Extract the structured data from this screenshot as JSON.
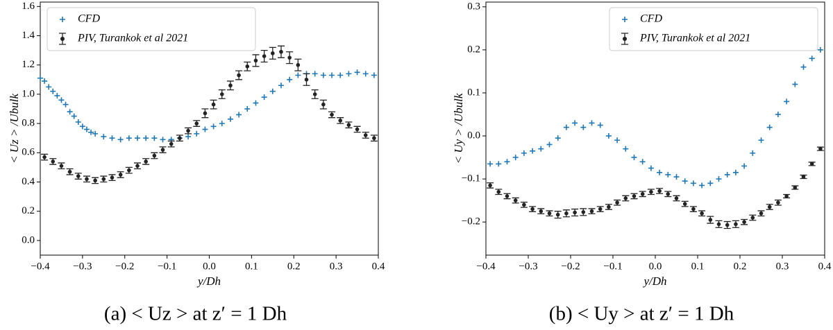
{
  "chart_data": [
    {
      "type": "scatter",
      "caption": "(a) < Uz > at z′ = 1 Dh",
      "xlabel": "y/Dh",
      "ylabel": "< Uz > /Ubulk",
      "xlim": [
        -0.4,
        0.4
      ],
      "ylim": [
        -0.1,
        1.63
      ],
      "xticks": [
        {
          "value": -0.4,
          "label": "−0.4"
        },
        {
          "value": -0.3,
          "label": "−0.3"
        },
        {
          "value": -0.2,
          "label": "−0.2"
        },
        {
          "value": -0.1,
          "label": "−0.1"
        },
        {
          "value": 0,
          "label": "0.0"
        },
        0.1,
        0.2,
        0.3,
        0.4
      ],
      "yticks": [
        {
          "value": 0,
          "label": "0.0"
        },
        0.2,
        0.4,
        0.6,
        0.8,
        {
          "value": 1,
          "label": "1.0"
        },
        1.2,
        1.4,
        1.6
      ],
      "legend": "upper left",
      "series": [
        {
          "name": "CFD",
          "color": "#1f77b4",
          "x": [
            -0.4,
            -0.39,
            -0.38,
            -0.37,
            -0.36,
            -0.35,
            -0.34,
            -0.33,
            -0.32,
            -0.31,
            -0.3,
            -0.29,
            -0.28,
            -0.27,
            -0.25,
            -0.23,
            -0.21,
            -0.19,
            -0.17,
            -0.15,
            -0.13,
            -0.11,
            -0.09,
            -0.07,
            -0.05,
            -0.03,
            -0.01,
            0.01,
            0.03,
            0.05,
            0.07,
            0.09,
            0.11,
            0.13,
            0.15,
            0.17,
            0.19,
            0.21,
            0.23,
            0.25,
            0.27,
            0.29,
            0.31,
            0.33,
            0.35,
            0.37,
            0.39
          ],
          "values": [
            1.11,
            1.09,
            1.05,
            1.02,
            0.99,
            0.96,
            0.93,
            0.88,
            0.85,
            0.81,
            0.78,
            0.76,
            0.74,
            0.73,
            0.71,
            0.7,
            0.69,
            0.7,
            0.7,
            0.7,
            0.7,
            0.69,
            0.69,
            0.7,
            0.71,
            0.73,
            0.76,
            0.78,
            0.8,
            0.83,
            0.86,
            0.9,
            0.94,
            0.98,
            1.02,
            1.06,
            1.1,
            1.13,
            1.14,
            1.14,
            1.13,
            1.13,
            1.13,
            1.14,
            1.15,
            1.14,
            1.13
          ]
        },
        {
          "name": "PIV, Turankok et al 2021",
          "color": "#222222",
          "x": [
            -0.39,
            -0.37,
            -0.35,
            -0.33,
            -0.31,
            -0.29,
            -0.27,
            -0.25,
            -0.23,
            -0.21,
            -0.19,
            -0.17,
            -0.15,
            -0.13,
            -0.11,
            -0.09,
            -0.07,
            -0.05,
            -0.03,
            -0.01,
            0.01,
            0.03,
            0.05,
            0.07,
            0.09,
            0.11,
            0.13,
            0.15,
            0.17,
            0.19,
            0.21,
            0.23,
            0.25,
            0.27,
            0.29,
            0.31,
            0.33,
            0.35,
            0.37,
            0.39
          ],
          "values": [
            0.57,
            0.54,
            0.51,
            0.47,
            0.44,
            0.42,
            0.41,
            0.42,
            0.43,
            0.45,
            0.48,
            0.51,
            0.54,
            0.58,
            0.62,
            0.66,
            0.7,
            0.75,
            0.8,
            0.87,
            0.93,
            1.0,
            1.06,
            1.13,
            1.19,
            1.23,
            1.26,
            1.28,
            1.29,
            1.25,
            1.2,
            1.1,
            1.0,
            0.93,
            0.86,
            0.82,
            0.79,
            0.76,
            0.72,
            0.7
          ],
          "errors": [
            0.02,
            0.02,
            0.02,
            0.02,
            0.02,
            0.02,
            0.02,
            0.02,
            0.02,
            0.02,
            0.02,
            0.02,
            0.02,
            0.02,
            0.02,
            0.02,
            0.02,
            0.02,
            0.02,
            0.03,
            0.03,
            0.03,
            0.03,
            0.03,
            0.03,
            0.04,
            0.04,
            0.04,
            0.04,
            0.04,
            0.04,
            0.04,
            0.03,
            0.03,
            0.02,
            0.02,
            0.02,
            0.02,
            0.02,
            0.02
          ]
        }
      ]
    },
    {
      "type": "scatter",
      "caption": "(b) < Uy > at z′ = 1 Dh",
      "xlabel": "y/Dh",
      "ylabel": "< Uy > /Ubulk",
      "xlim": [
        -0.4,
        0.4
      ],
      "ylim": [
        -0.277,
        0.311
      ],
      "xticks": [
        {
          "value": -0.4,
          "label": "−0.4"
        },
        {
          "value": -0.3,
          "label": "−0.3"
        },
        {
          "value": -0.2,
          "label": "−0.2"
        },
        {
          "value": -0.1,
          "label": "−0.1"
        },
        {
          "value": 0,
          "label": "0.0"
        },
        0.1,
        0.2,
        0.3,
        0.4
      ],
      "yticks": [
        {
          "value": -0.2,
          "label": "−0.2"
        },
        {
          "value": -0.1,
          "label": "−0.1"
        },
        {
          "value": 0,
          "label": "0.0"
        },
        0.1,
        0.2,
        0.3
      ],
      "legend": "upper right",
      "series": [
        {
          "name": "CFD",
          "color": "#1f77b4",
          "x": [
            -0.39,
            -0.37,
            -0.35,
            -0.33,
            -0.31,
            -0.29,
            -0.27,
            -0.25,
            -0.23,
            -0.21,
            -0.19,
            -0.17,
            -0.15,
            -0.13,
            -0.11,
            -0.09,
            -0.07,
            -0.05,
            -0.03,
            -0.01,
            0.01,
            0.03,
            0.05,
            0.07,
            0.09,
            0.11,
            0.13,
            0.15,
            0.17,
            0.19,
            0.21,
            0.23,
            0.25,
            0.27,
            0.29,
            0.31,
            0.33,
            0.35,
            0.37,
            0.39
          ],
          "values": [
            -0.065,
            -0.065,
            -0.06,
            -0.05,
            -0.04,
            -0.035,
            -0.03,
            -0.02,
            -0.005,
            0.02,
            0.03,
            0.02,
            0.03,
            0.025,
            0.0,
            -0.01,
            -0.03,
            -0.05,
            -0.06,
            -0.075,
            -0.085,
            -0.09,
            -0.095,
            -0.105,
            -0.11,
            -0.115,
            -0.11,
            -0.1,
            -0.09,
            -0.085,
            -0.07,
            -0.04,
            -0.01,
            0.02,
            0.05,
            0.08,
            0.12,
            0.16,
            0.18,
            0.2
          ]
        },
        {
          "name": "PIV, Turankok et al 2021",
          "color": "#222222",
          "x": [
            -0.39,
            -0.37,
            -0.35,
            -0.33,
            -0.31,
            -0.29,
            -0.27,
            -0.25,
            -0.23,
            -0.21,
            -0.19,
            -0.17,
            -0.15,
            -0.13,
            -0.11,
            -0.09,
            -0.07,
            -0.05,
            -0.03,
            -0.01,
            0.01,
            0.03,
            0.05,
            0.07,
            0.09,
            0.11,
            0.13,
            0.15,
            0.17,
            0.19,
            0.21,
            0.23,
            0.25,
            0.27,
            0.29,
            0.31,
            0.33,
            0.35,
            0.37,
            0.39
          ],
          "values": [
            -0.115,
            -0.13,
            -0.14,
            -0.15,
            -0.16,
            -0.17,
            -0.175,
            -0.18,
            -0.183,
            -0.18,
            -0.178,
            -0.177,
            -0.175,
            -0.17,
            -0.165,
            -0.155,
            -0.145,
            -0.14,
            -0.135,
            -0.13,
            -0.128,
            -0.135,
            -0.145,
            -0.158,
            -0.17,
            -0.18,
            -0.195,
            -0.205,
            -0.207,
            -0.205,
            -0.2,
            -0.19,
            -0.18,
            -0.165,
            -0.155,
            -0.14,
            -0.12,
            -0.095,
            -0.065,
            -0.03
          ],
          "errors": [
            0.006,
            0.006,
            0.006,
            0.006,
            0.006,
            0.006,
            0.006,
            0.006,
            0.008,
            0.008,
            0.008,
            0.008,
            0.006,
            0.006,
            0.006,
            0.006,
            0.006,
            0.006,
            0.006,
            0.006,
            0.006,
            0.006,
            0.006,
            0.006,
            0.006,
            0.006,
            0.008,
            0.008,
            0.008,
            0.008,
            0.006,
            0.006,
            0.006,
            0.006,
            0.006,
            0.004,
            0.004,
            0.004,
            0.004,
            0.004
          ]
        }
      ]
    }
  ]
}
